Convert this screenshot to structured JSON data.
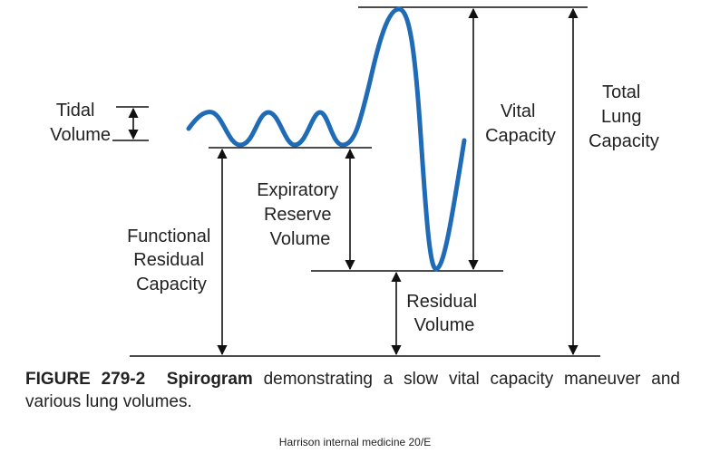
{
  "labels": {
    "tidal_volume": [
      "Tidal",
      "Volume"
    ],
    "functional_residual_capacity": [
      "Functional",
      "Residual",
      "Capacity"
    ],
    "expiratory_reserve_volume": [
      "Expiratory",
      "Reserve",
      "Volume"
    ],
    "residual_volume": [
      "Residual",
      "Volume"
    ],
    "vital_capacity": [
      "Vital",
      "Capacity"
    ],
    "total_lung_capacity": [
      "Total",
      "Lung",
      "Capacity"
    ]
  },
  "caption": {
    "figure_number": "FIGURE 279-2",
    "title": "Spirogram",
    "text": "demonstrating a slow vital capacity maneuver and various lung volumes."
  },
  "source": "Harrison internal medicine 20/E"
}
